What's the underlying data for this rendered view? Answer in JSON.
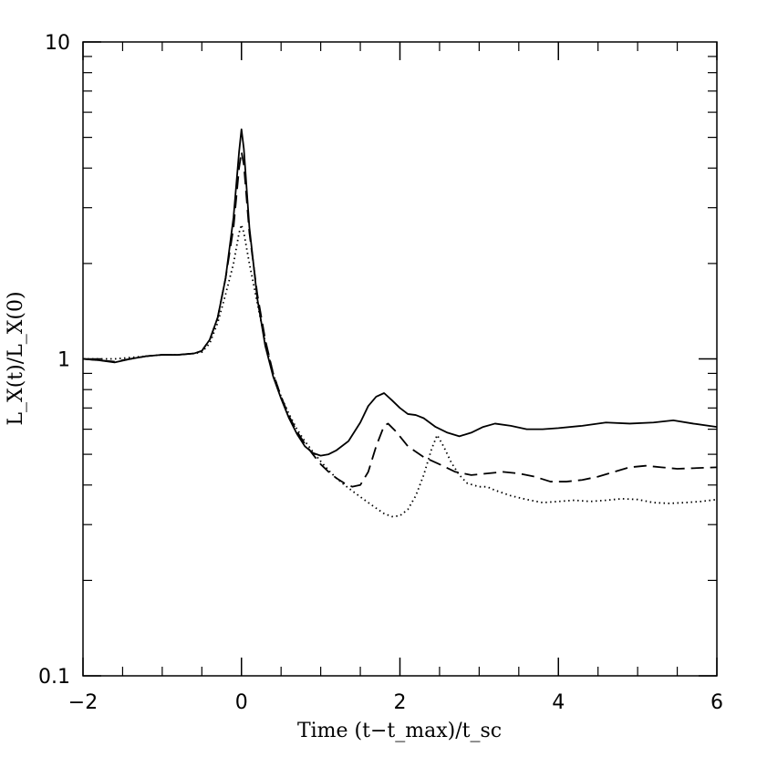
{
  "chart_data": {
    "type": "line",
    "xlabel": "Time (t−t_max)/t_sc",
    "ylabel": "L_X(t)/L_X(0)",
    "xlim": [
      -2,
      6
    ],
    "ylim": [
      0.1,
      10
    ],
    "yscale": "log",
    "grid": false,
    "x_ticks": [
      "−2",
      "0",
      "2",
      "4",
      "6"
    ],
    "y_ticks": [
      "0.1",
      "1",
      "10"
    ],
    "series": [
      {
        "style": "solid",
        "points": [
          [
            -2,
            1.0
          ],
          [
            -1.8,
            0.99
          ],
          [
            -1.6,
            0.975
          ],
          [
            -1.4,
            1.0
          ],
          [
            -1.2,
            1.02
          ],
          [
            -1.0,
            1.03
          ],
          [
            -0.8,
            1.03
          ],
          [
            -0.6,
            1.04
          ],
          [
            -0.5,
            1.06
          ],
          [
            -0.4,
            1.15
          ],
          [
            -0.3,
            1.35
          ],
          [
            -0.2,
            1.8
          ],
          [
            -0.1,
            2.8
          ],
          [
            -0.03,
            4.5
          ],
          [
            0,
            5.3
          ],
          [
            0.03,
            4.6
          ],
          [
            0.1,
            2.6
          ],
          [
            0.2,
            1.55
          ],
          [
            0.3,
            1.1
          ],
          [
            0.4,
            0.88
          ],
          [
            0.5,
            0.75
          ],
          [
            0.6,
            0.65
          ],
          [
            0.7,
            0.58
          ],
          [
            0.8,
            0.53
          ],
          [
            0.9,
            0.505
          ],
          [
            1.0,
            0.495
          ],
          [
            1.1,
            0.5
          ],
          [
            1.2,
            0.515
          ],
          [
            1.35,
            0.55
          ],
          [
            1.5,
            0.63
          ],
          [
            1.6,
            0.71
          ],
          [
            1.7,
            0.76
          ],
          [
            1.8,
            0.78
          ],
          [
            1.9,
            0.74
          ],
          [
            2.0,
            0.7
          ],
          [
            2.1,
            0.67
          ],
          [
            2.2,
            0.665
          ],
          [
            2.3,
            0.65
          ],
          [
            2.45,
            0.61
          ],
          [
            2.6,
            0.585
          ],
          [
            2.75,
            0.57
          ],
          [
            2.9,
            0.585
          ],
          [
            3.05,
            0.61
          ],
          [
            3.2,
            0.625
          ],
          [
            3.4,
            0.615
          ],
          [
            3.6,
            0.6
          ],
          [
            3.8,
            0.6
          ],
          [
            4.0,
            0.605
          ],
          [
            4.3,
            0.615
          ],
          [
            4.6,
            0.63
          ],
          [
            4.9,
            0.625
          ],
          [
            5.2,
            0.63
          ],
          [
            5.45,
            0.64
          ],
          [
            5.7,
            0.625
          ],
          [
            6.0,
            0.61
          ]
        ]
      },
      {
        "style": "dashed",
        "points": [
          [
            -2,
            1.0
          ],
          [
            -1.8,
            0.99
          ],
          [
            -1.6,
            0.98
          ],
          [
            -1.4,
            1.0
          ],
          [
            -1.2,
            1.02
          ],
          [
            -1.0,
            1.03
          ],
          [
            -0.8,
            1.03
          ],
          [
            -0.6,
            1.04
          ],
          [
            -0.5,
            1.06
          ],
          [
            -0.4,
            1.15
          ],
          [
            -0.3,
            1.35
          ],
          [
            -0.2,
            1.8
          ],
          [
            -0.1,
            2.6
          ],
          [
            -0.03,
            4.0
          ],
          [
            0,
            4.5
          ],
          [
            0.03,
            4.1
          ],
          [
            0.1,
            2.5
          ],
          [
            0.2,
            1.6
          ],
          [
            0.3,
            1.15
          ],
          [
            0.4,
            0.9
          ],
          [
            0.5,
            0.76
          ],
          [
            0.6,
            0.66
          ],
          [
            0.7,
            0.59
          ],
          [
            0.8,
            0.54
          ],
          [
            0.9,
            0.5
          ],
          [
            1.0,
            0.465
          ],
          [
            1.1,
            0.44
          ],
          [
            1.2,
            0.42
          ],
          [
            1.3,
            0.405
          ],
          [
            1.4,
            0.395
          ],
          [
            1.5,
            0.4
          ],
          [
            1.6,
            0.44
          ],
          [
            1.7,
            0.53
          ],
          [
            1.8,
            0.615
          ],
          [
            1.85,
            0.625
          ],
          [
            1.95,
            0.59
          ],
          [
            2.1,
            0.53
          ],
          [
            2.3,
            0.49
          ],
          [
            2.5,
            0.465
          ],
          [
            2.7,
            0.44
          ],
          [
            2.9,
            0.43
          ],
          [
            3.1,
            0.435
          ],
          [
            3.3,
            0.44
          ],
          [
            3.5,
            0.435
          ],
          [
            3.7,
            0.425
          ],
          [
            3.9,
            0.41
          ],
          [
            4.1,
            0.41
          ],
          [
            4.3,
            0.415
          ],
          [
            4.5,
            0.425
          ],
          [
            4.7,
            0.44
          ],
          [
            4.9,
            0.455
          ],
          [
            5.1,
            0.46
          ],
          [
            5.3,
            0.455
          ],
          [
            5.5,
            0.45
          ],
          [
            5.7,
            0.452
          ],
          [
            6.0,
            0.455
          ]
        ]
      },
      {
        "style": "dotted",
        "points": [
          [
            -2,
            1.0
          ],
          [
            -1.8,
            1.0
          ],
          [
            -1.6,
            1.0
          ],
          [
            -1.4,
            1.01
          ],
          [
            -1.2,
            1.02
          ],
          [
            -1.0,
            1.03
          ],
          [
            -0.8,
            1.03
          ],
          [
            -0.6,
            1.04
          ],
          [
            -0.5,
            1.05
          ],
          [
            -0.4,
            1.12
          ],
          [
            -0.3,
            1.3
          ],
          [
            -0.2,
            1.6
          ],
          [
            -0.1,
            2.0
          ],
          [
            -0.03,
            2.5
          ],
          [
            0,
            2.65
          ],
          [
            0.03,
            2.5
          ],
          [
            0.1,
            2.0
          ],
          [
            0.2,
            1.5
          ],
          [
            0.3,
            1.13
          ],
          [
            0.4,
            0.9
          ],
          [
            0.5,
            0.76
          ],
          [
            0.6,
            0.67
          ],
          [
            0.7,
            0.6
          ],
          [
            0.8,
            0.55
          ],
          [
            0.9,
            0.51
          ],
          [
            1.0,
            0.475
          ],
          [
            1.1,
            0.445
          ],
          [
            1.2,
            0.42
          ],
          [
            1.3,
            0.4
          ],
          [
            1.4,
            0.383
          ],
          [
            1.5,
            0.367
          ],
          [
            1.6,
            0.352
          ],
          [
            1.7,
            0.338
          ],
          [
            1.8,
            0.325
          ],
          [
            1.9,
            0.318
          ],
          [
            2.0,
            0.32
          ],
          [
            2.1,
            0.335
          ],
          [
            2.2,
            0.37
          ],
          [
            2.3,
            0.43
          ],
          [
            2.4,
            0.52
          ],
          [
            2.47,
            0.575
          ],
          [
            2.55,
            0.53
          ],
          [
            2.65,
            0.47
          ],
          [
            2.75,
            0.43
          ],
          [
            2.85,
            0.405
          ],
          [
            3.0,
            0.395
          ],
          [
            3.1,
            0.395
          ],
          [
            3.2,
            0.385
          ],
          [
            3.4,
            0.37
          ],
          [
            3.6,
            0.36
          ],
          [
            3.8,
            0.352
          ],
          [
            4.0,
            0.355
          ],
          [
            4.2,
            0.358
          ],
          [
            4.4,
            0.355
          ],
          [
            4.6,
            0.358
          ],
          [
            4.8,
            0.362
          ],
          [
            5.0,
            0.36
          ],
          [
            5.2,
            0.352
          ],
          [
            5.4,
            0.35
          ],
          [
            5.6,
            0.352
          ],
          [
            5.8,
            0.355
          ],
          [
            6.0,
            0.36
          ]
        ]
      }
    ]
  }
}
